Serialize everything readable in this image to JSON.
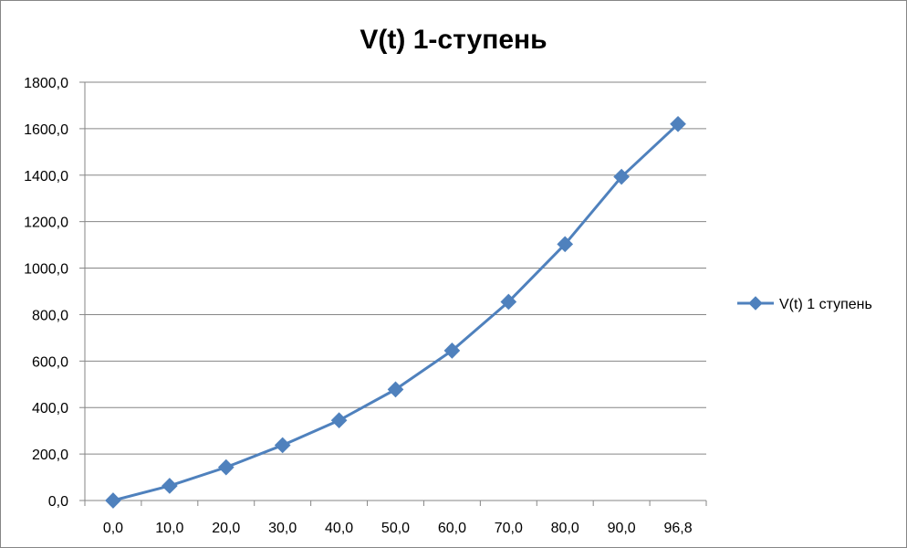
{
  "chart_data": {
    "type": "line",
    "title": "V(t) 1-ступень",
    "xlabel": "",
    "ylabel": "",
    "categories": [
      "0,0",
      "10,0",
      "20,0",
      "30,0",
      "40,0",
      "50,0",
      "60,0",
      "70,0",
      "80,0",
      "90,0",
      "96,8"
    ],
    "series": [
      {
        "name": "V(t) 1 ступень",
        "values": [
          0,
          63,
          143,
          238,
          345,
          478,
          645,
          855,
          1103,
          1393,
          1620
        ]
      }
    ],
    "ylim": [
      0,
      1800
    ],
    "y_ticks": [
      "0,0",
      "200,0",
      "400,0",
      "600,0",
      "800,0",
      "1000,0",
      "1200,0",
      "1400,0",
      "1600,0",
      "1800,0"
    ],
    "grid": "horizontal",
    "legend_position": "right",
    "colors": {
      "series": "#4f81bd",
      "grid": "#868686",
      "frame": "#868686"
    }
  }
}
